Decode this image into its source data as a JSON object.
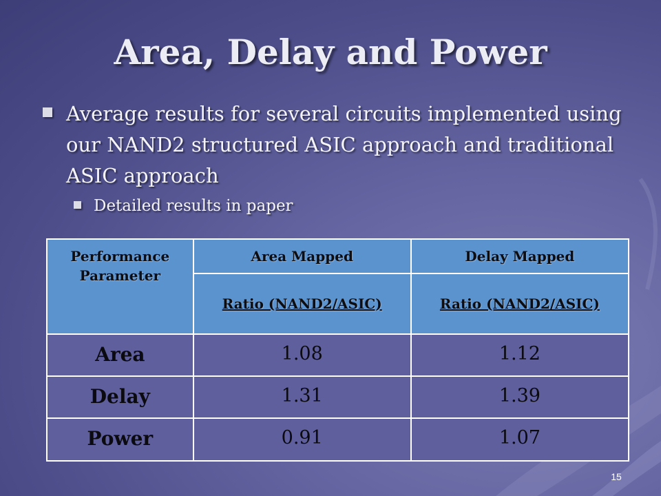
{
  "slide": {
    "title": "Area, Delay and Power",
    "bullets": [
      "Average results for several circuits implemented using our NAND2 structured ASIC approach and traditional ASIC approach",
      "Detailed results in paper"
    ],
    "page_number": "15"
  },
  "table": {
    "corner": "Performance Parameter",
    "col1_header": "Area Mapped",
    "col2_header": "Delay Mapped",
    "col1_sub": "Ratio (NAND2/ASIC)",
    "col2_sub": "Ratio (NAND2/ASIC)",
    "rows": [
      {
        "label": "Area",
        "area_mapped": "1.08",
        "delay_mapped": "1.12"
      },
      {
        "label": "Delay",
        "area_mapped": "1.31",
        "delay_mapped": "1.39"
      },
      {
        "label": "Power",
        "area_mapped": "0.91",
        "delay_mapped": "1.07"
      }
    ]
  },
  "colors": {
    "background": "#5a5a96",
    "header_fill": "#5b93cf",
    "title_text": "#ececf4"
  }
}
